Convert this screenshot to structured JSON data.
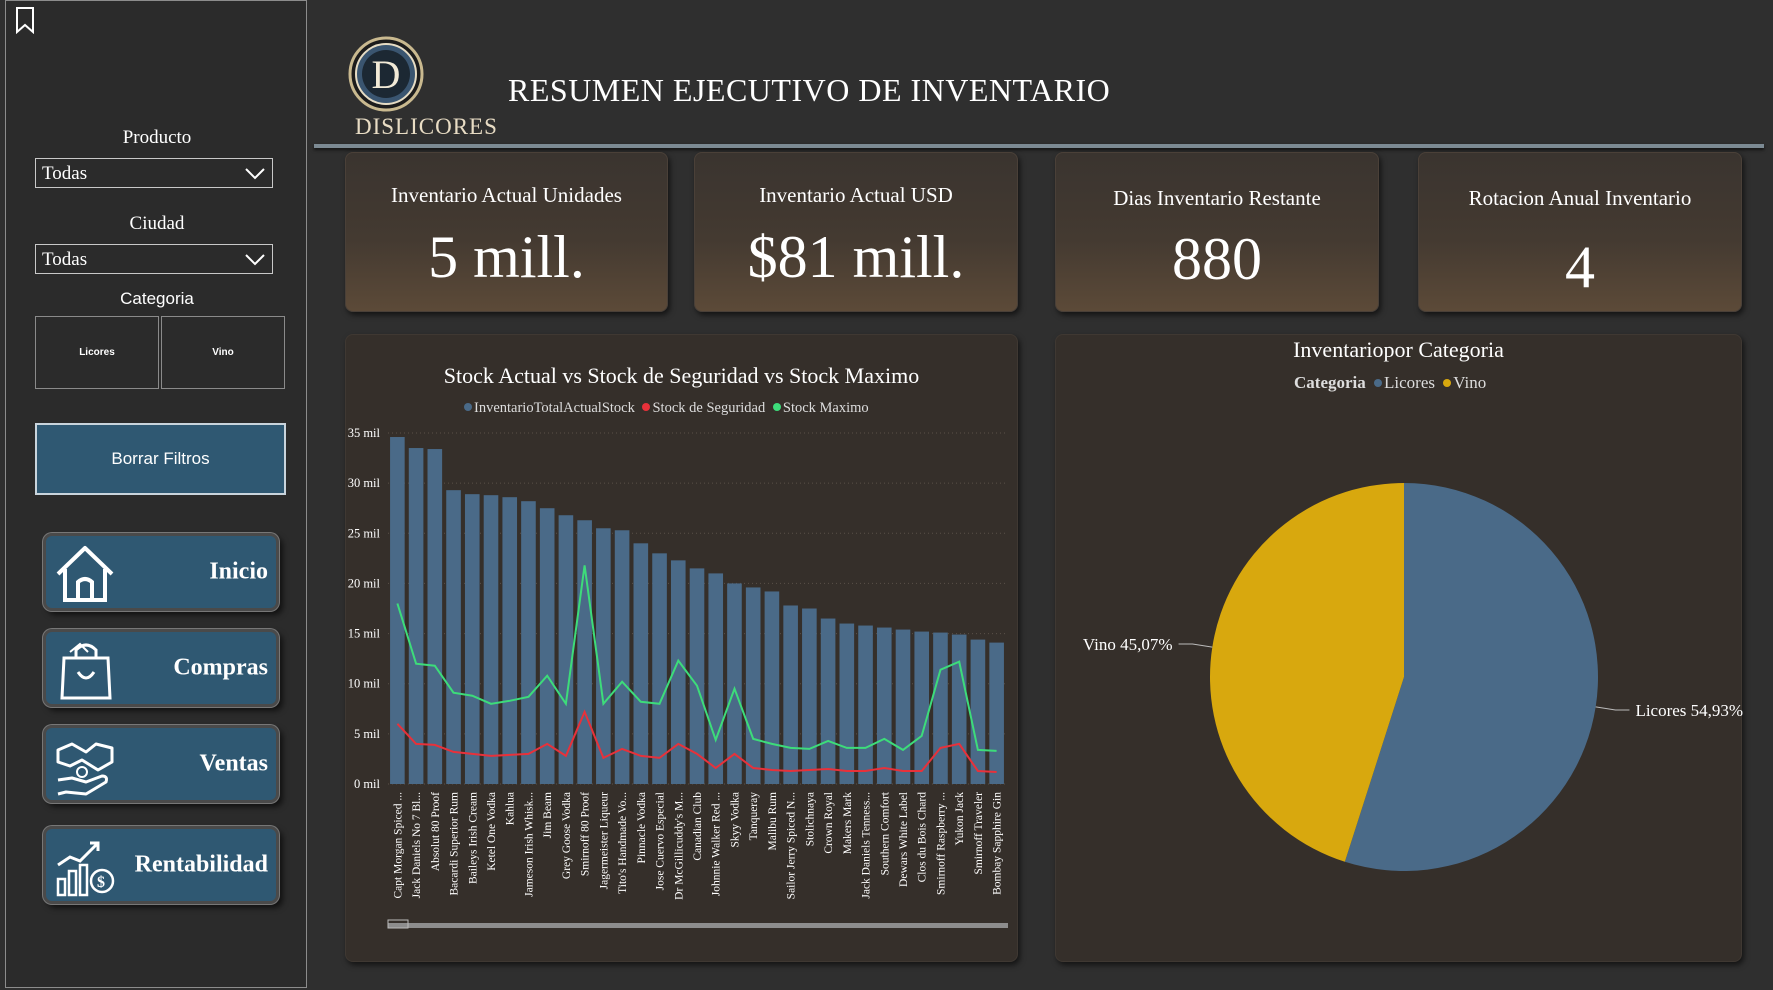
{
  "sidebar": {
    "producto_label": "Producto",
    "producto_value": "Todas",
    "ciudad_label": "Ciudad",
    "ciudad_value": "Todas",
    "categoria_label": "Categoria",
    "categoria_options": [
      "Licores",
      "Vino"
    ],
    "clear_label": "Borrar Filtros",
    "nav": [
      {
        "label": "Inicio",
        "icon": "home-icon"
      },
      {
        "label": "Compras",
        "icon": "shopping-bag-icon"
      },
      {
        "label": "Ventas",
        "icon": "handshake-icon"
      },
      {
        "label": "Rentabilidad",
        "icon": "growth-chart-icon"
      }
    ]
  },
  "header": {
    "title": "RESUMEN EJECUTIVO DE INVENTARIO",
    "logo_text": "DISLICORES",
    "logo_letter": "D"
  },
  "kpis": [
    {
      "label": "Inventario Actual Unidades",
      "value": "5 mill."
    },
    {
      "label": "Inventario Actual USD",
      "value": "$81 mill."
    },
    {
      "label": "Dias Inventario Restante",
      "value": "880"
    },
    {
      "label": "Rotacion Anual Inventario",
      "value": "4"
    }
  ],
  "colors": {
    "bar": "#4a6a88",
    "safety": "#e8313a",
    "max": "#3ddc7a",
    "licores": "#4a6a88",
    "vino": "#d8a80e"
  },
  "chart_data": [
    {
      "type": "bar",
      "title": "Stock Actual vs Stock de Seguridad vs Stock Maximo",
      "legend": [
        "InventarioTotalActualStock",
        "Stock de Seguridad",
        "Stock Maximo"
      ],
      "ylim": [
        0,
        35000
      ],
      "yticks": [
        "0 mil",
        "5 mil",
        "10 mil",
        "15 mil",
        "20 mil",
        "25 mil",
        "30 mil",
        "35 mil"
      ],
      "categories": [
        "Capt Morgan Spiced ...",
        "Jack Daniels No 7 Bl...",
        "Absolut 80 Proof",
        "Bacardi Superior Rum",
        "Baileys Irish Cream",
        "Ketel One Vodka",
        "Kahlua",
        "Jameson Irish Whisk...",
        "Jim Beam",
        "Grey Goose Vodka",
        "Smirnoff 80 Proof",
        "Jagermeister Liqueur",
        "Tito's Handmade Vo...",
        "Pinnacle Vodka",
        "Jose Cuervo Especial",
        "Dr McGillicuddy's M...",
        "Canadian Club",
        "Johnnie Walker Red ...",
        "Skyy Vodka",
        "Tanqueray",
        "Malibu Rum",
        "Sailor Jerry Spiced N...",
        "Stolichnaya",
        "Crown Royal",
        "Makers Mark",
        "Jack Daniels Tenness...",
        "Southern Comfort",
        "Dewars White Label",
        "Clos du Bois Chard",
        "Smirnoff Raspberry ...",
        "Yukon Jack",
        "Smirnoff Traveler",
        "Bombay Sapphire Gin"
      ],
      "series": [
        {
          "name": "InventarioTotalActualStock",
          "type": "bar",
          "values": [
            34600,
            33500,
            33400,
            29300,
            28900,
            28800,
            28600,
            28200,
            27500,
            26800,
            26300,
            25500,
            25300,
            24000,
            23000,
            22300,
            21500,
            21000,
            20000,
            19600,
            19200,
            17800,
            17500,
            16500,
            16000,
            15800,
            15600,
            15400,
            15200,
            15100,
            14900,
            14400,
            14100
          ]
        },
        {
          "name": "Stock de Seguridad",
          "type": "line",
          "values": [
            6000,
            4000,
            3900,
            3200,
            3000,
            2800,
            2900,
            3000,
            4000,
            2800,
            7200,
            2600,
            3500,
            2800,
            2600,
            4000,
            3000,
            1600,
            3000,
            1600,
            1400,
            1300,
            1400,
            1500,
            1300,
            1300,
            1600,
            1300,
            1300,
            3600,
            4000,
            1300,
            1200
          ]
        },
        {
          "name": "Stock Maximo",
          "type": "line",
          "values": [
            18000,
            12000,
            11800,
            9100,
            8800,
            8000,
            8300,
            8700,
            10800,
            8000,
            21800,
            8000,
            10200,
            8200,
            8000,
            12300,
            9800,
            4400,
            9500,
            4500,
            4000,
            3600,
            3500,
            4300,
            3600,
            3600,
            4500,
            3400,
            4800,
            11400,
            12200,
            3400,
            3300
          ]
        }
      ]
    },
    {
      "type": "pie",
      "title": "Inventariopor Categoria",
      "legend_title": "Categoria",
      "legend": [
        "Licores",
        "Vino"
      ],
      "slices": [
        {
          "name": "Licores",
          "value": 54.93,
          "label": "Licores 54,93%"
        },
        {
          "name": "Vino",
          "value": 45.07,
          "label": "Vino 45,07%"
        }
      ]
    }
  ]
}
